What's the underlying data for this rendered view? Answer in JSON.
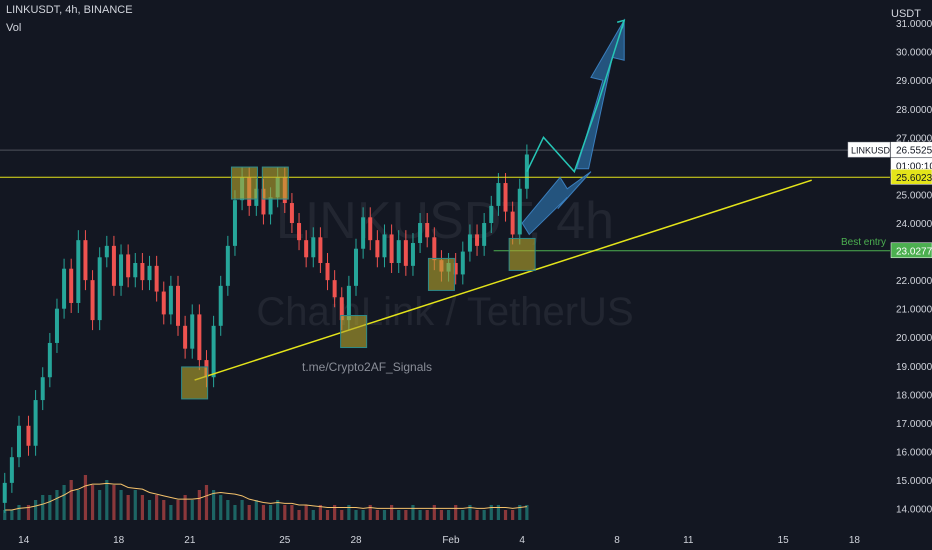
{
  "header": {
    "symbol_line": "LINKUSDT, 4h, BINANCE",
    "volume_label": "Vol",
    "currency": "USDT"
  },
  "watermark": {
    "ticker": "LINKUSDT, 4h",
    "name": "ChainLink / TetherUS",
    "signature": "t.me/Crypto2AF_Signals"
  },
  "colors": {
    "background": "#131722",
    "up": "#26a69a",
    "down": "#ef5350",
    "trendline": "#e4e41a",
    "resistance": "#e4e41a",
    "support": "#4caf50",
    "boxes": "#b8a62d",
    "arrows": "#2b6a9e",
    "projection": "#26c6b6",
    "volume_ma": "#f5c26b"
  },
  "chart_data": {
    "type": "candlestick",
    "y_axis": {
      "min": 13.6,
      "max": 31.6,
      "ticks": [
        14,
        15,
        16,
        17,
        18,
        19,
        20,
        21,
        22,
        23,
        24,
        25,
        26,
        27,
        28,
        29,
        30,
        31
      ],
      "tick_labels": [
        "14.0000",
        "15.0000",
        "16.0000",
        "17.0000",
        "18.0000",
        "19.0000",
        "20.0000",
        "21.0000",
        "22.0000",
        "23.0000",
        "24.0000",
        "25.0000",
        "26.0000",
        "27.0000",
        "28.0000",
        "29.0000",
        "30.0000",
        "31.0000"
      ]
    },
    "x_axis": {
      "day_min": 13.0,
      "day_max": 50.5,
      "tick_days": [
        14,
        18,
        21,
        25,
        28,
        32,
        35,
        39,
        42,
        46,
        49
      ],
      "tick_labels": [
        "14",
        "18",
        "21",
        "25",
        "28",
        "Feb",
        "4",
        "8",
        "11",
        "15",
        "18"
      ]
    },
    "candles": [
      [
        13.2,
        14.2,
        14.9
      ],
      [
        13.5,
        14.9,
        15.8
      ],
      [
        13.8,
        15.8,
        16.9
      ],
      [
        14.2,
        16.9,
        16.2
      ],
      [
        14.5,
        16.2,
        17.8
      ],
      [
        14.8,
        17.8,
        18.6
      ],
      [
        15.1,
        18.6,
        19.8
      ],
      [
        15.4,
        19.8,
        21.0
      ],
      [
        15.7,
        21.0,
        22.4
      ],
      [
        16.0,
        22.4,
        21.2
      ],
      [
        16.3,
        21.2,
        23.4
      ],
      [
        16.6,
        23.4,
        22.0
      ],
      [
        16.9,
        22.0,
        20.6
      ],
      [
        17.2,
        20.6,
        22.8
      ],
      [
        17.5,
        22.8,
        23.2
      ],
      [
        17.8,
        23.2,
        21.8
      ],
      [
        18.1,
        21.8,
        22.9
      ],
      [
        18.4,
        22.9,
        22.1
      ],
      [
        18.7,
        22.1,
        22.6
      ],
      [
        19.0,
        22.6,
        22.0
      ],
      [
        19.3,
        22.0,
        22.5
      ],
      [
        19.6,
        22.5,
        21.6
      ],
      [
        19.9,
        21.6,
        20.8
      ],
      [
        20.2,
        20.8,
        21.8
      ],
      [
        20.5,
        21.8,
        20.4
      ],
      [
        20.8,
        20.4,
        19.6
      ],
      [
        21.1,
        19.6,
        20.8
      ],
      [
        21.4,
        20.8,
        19.2
      ],
      [
        21.7,
        19.2,
        18.6
      ],
      [
        22.0,
        18.6,
        20.4
      ],
      [
        22.3,
        20.4,
        21.8
      ],
      [
        22.6,
        21.8,
        23.2
      ],
      [
        22.9,
        23.2,
        24.8
      ],
      [
        23.2,
        24.8,
        25.6
      ],
      [
        23.5,
        25.6,
        24.6
      ],
      [
        23.8,
        24.6,
        25.2
      ],
      [
        24.1,
        25.2,
        24.3
      ],
      [
        24.4,
        24.3,
        24.9
      ],
      [
        24.7,
        24.9,
        25.6
      ],
      [
        25.0,
        25.6,
        24.7
      ],
      [
        25.3,
        24.7,
        24.0
      ],
      [
        25.6,
        24.0,
        23.4
      ],
      [
        25.9,
        23.4,
        22.8
      ],
      [
        26.2,
        22.8,
        23.5
      ],
      [
        26.5,
        23.5,
        22.6
      ],
      [
        26.8,
        22.6,
        22.0
      ],
      [
        27.1,
        22.0,
        21.4
      ],
      [
        27.4,
        21.4,
        20.6
      ],
      [
        27.7,
        20.6,
        21.8
      ],
      [
        28.0,
        21.8,
        23.1
      ],
      [
        28.3,
        23.1,
        24.2
      ],
      [
        28.6,
        24.2,
        23.4
      ],
      [
        28.9,
        23.4,
        22.8
      ],
      [
        29.2,
        22.8,
        23.6
      ],
      [
        29.5,
        23.6,
        22.6
      ],
      [
        29.8,
        22.6,
        23.4
      ],
      [
        30.1,
        23.4,
        22.5
      ],
      [
        30.4,
        22.5,
        23.3
      ],
      [
        30.7,
        23.3,
        24.0
      ],
      [
        31.0,
        24.0,
        23.5
      ],
      [
        31.3,
        23.5,
        22.7
      ],
      [
        31.6,
        22.7,
        22.3
      ],
      [
        31.9,
        22.3,
        22.6
      ],
      [
        32.2,
        22.6,
        22.2
      ],
      [
        32.5,
        22.2,
        23.0
      ],
      [
        32.8,
        23.0,
        23.6
      ],
      [
        33.1,
        23.6,
        23.2
      ],
      [
        33.4,
        23.2,
        24.0
      ],
      [
        33.7,
        24.0,
        24.6
      ],
      [
        34.0,
        24.6,
        25.4
      ],
      [
        34.3,
        25.4,
        24.4
      ],
      [
        34.6,
        24.4,
        23.6
      ],
      [
        34.9,
        23.6,
        25.2
      ],
      [
        35.2,
        25.2,
        26.4
      ]
    ],
    "resistance_level": 25.6023,
    "support_level": 23.0277,
    "current_price": 26.5525,
    "trendline": [
      [
        21.2,
        18.5
      ],
      [
        47.2,
        25.5
      ]
    ],
    "boxes": [
      [
        21.2,
        18.4
      ],
      [
        23.3,
        25.4
      ],
      [
        24.6,
        25.4
      ],
      [
        27.9,
        20.2
      ],
      [
        31.6,
        22.2
      ],
      [
        35.0,
        22.9
      ]
    ],
    "projection_path": [
      [
        35.2,
        25.8
      ],
      [
        35.9,
        27.0
      ],
      [
        37.2,
        25.8
      ],
      [
        38.2,
        28.2
      ],
      [
        39.3,
        31.1
      ]
    ],
    "volume": [
      2,
      2,
      3,
      3,
      4,
      5,
      5,
      6,
      7,
      8,
      6,
      9,
      7,
      6,
      8,
      7,
      6,
      5,
      6,
      5,
      4,
      5,
      4,
      3,
      4,
      5,
      4,
      6,
      7,
      6,
      5,
      4,
      3,
      4,
      3,
      4,
      3,
      3,
      4,
      3,
      3,
      2,
      3,
      2,
      3,
      2,
      3,
      2,
      3,
      2,
      2,
      3,
      2,
      2,
      3,
      2,
      2,
      3,
      2,
      2,
      3,
      2,
      2,
      3,
      2,
      3,
      2,
      2,
      3,
      3,
      2,
      2,
      3,
      3
    ],
    "price_labels": [
      {
        "price": 26.5525,
        "text": "26.5525",
        "tag": "LINKUSDT"
      },
      {
        "price": 26.0,
        "text": "01:00:10"
      },
      {
        "price": 25.6023,
        "text": "25.6023"
      },
      {
        "price": 23.0277,
        "text": "23.0277"
      }
    ],
    "annotations": [
      {
        "text": "Best entry",
        "price": 23.0277
      }
    ]
  }
}
